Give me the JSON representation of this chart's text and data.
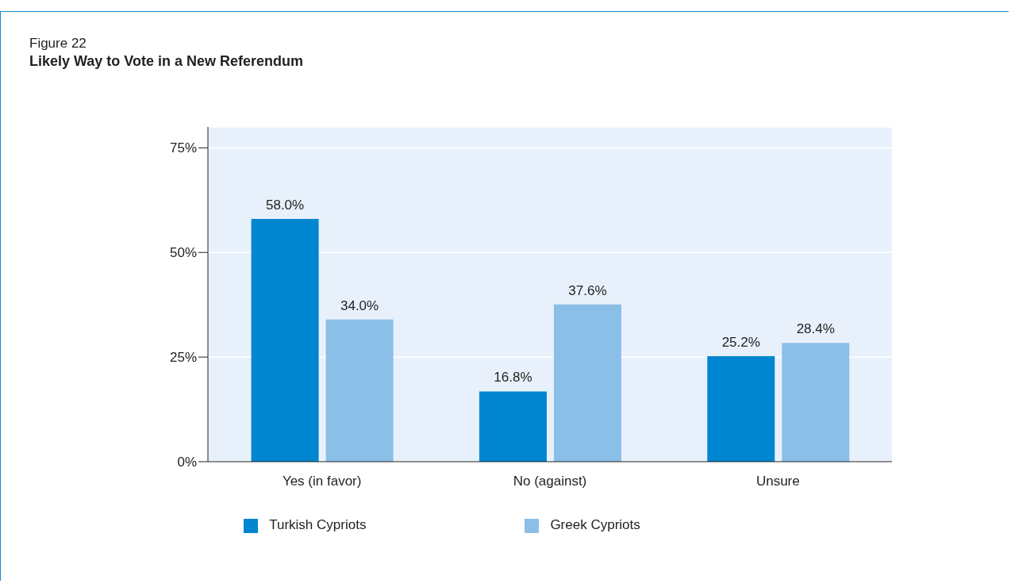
{
  "chart_data": {
    "type": "bar",
    "title": "Figure 22",
    "subtitle": "Likely Way to Vote in a New Referendum",
    "categories": [
      "Yes (in favor)",
      "No (against)",
      "Unsure"
    ],
    "series": [
      {
        "name": "Turkish Cypriots",
        "color": "#0086d1",
        "values": [
          58.0,
          16.8,
          25.2
        ],
        "value_labels": [
          "58.0%",
          "16.8%",
          "25.2%"
        ]
      },
      {
        "name": "Greek Cypriots",
        "color": "#8bbfe8",
        "values": [
          34.0,
          37.6,
          28.4
        ],
        "value_labels": [
          "34.0%",
          "37.6%",
          "28.4%"
        ]
      }
    ],
    "ylim": [
      0,
      80
    ],
    "yticks": [
      {
        "value": 0,
        "label": "0%"
      },
      {
        "value": 25,
        "label": "25%"
      },
      {
        "value": 50,
        "label": "50%"
      },
      {
        "value": 75,
        "label": "75%"
      }
    ],
    "grid": "y",
    "legend": "bottom"
  }
}
